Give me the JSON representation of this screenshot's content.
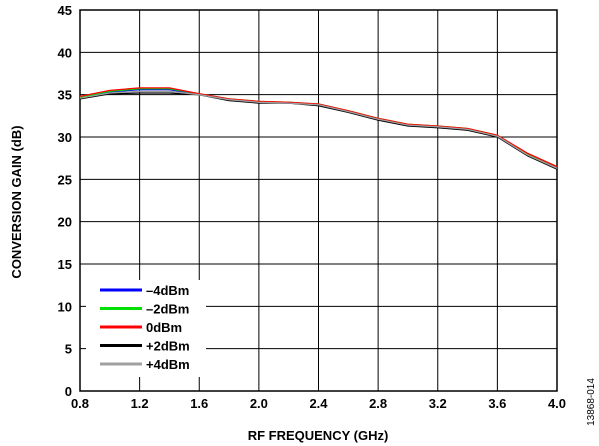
{
  "chart_data": {
    "type": "line",
    "xlabel": "RF FREQUENCY (GHz)",
    "ylabel": "CONVERSION GAIN (dB)",
    "xlim": [
      0.8,
      4.0
    ],
    "ylim": [
      0,
      45
    ],
    "xticks": [
      "0.8",
      "1.2",
      "1.6",
      "2.0",
      "2.4",
      "2.8",
      "3.2",
      "3.6",
      "4.0"
    ],
    "yticks": [
      "0",
      "5",
      "10",
      "15",
      "20",
      "25",
      "30",
      "35",
      "40",
      "45"
    ],
    "grid": true,
    "legend_position": "bottom-left",
    "x": [
      0.8,
      1.0,
      1.2,
      1.4,
      1.6,
      1.8,
      2.0,
      2.2,
      2.4,
      2.6,
      2.8,
      3.0,
      3.2,
      3.4,
      3.6,
      3.8,
      4.0
    ],
    "series": [
      {
        "name": "–4dBm",
        "color": "#0000ff",
        "values": [
          34.6,
          35.3,
          35.6,
          35.6,
          35.0,
          34.4,
          34.1,
          34.0,
          33.8,
          33.0,
          32.1,
          31.4,
          31.2,
          30.9,
          30.1,
          27.9,
          26.3
        ]
      },
      {
        "name": "–2dBm",
        "color": "#00e000",
        "values": [
          34.7,
          35.4,
          35.7,
          35.7,
          35.1,
          34.5,
          34.2,
          34.1,
          33.9,
          33.1,
          32.2,
          31.5,
          31.3,
          31.0,
          30.2,
          28.0,
          26.5
        ]
      },
      {
        "name": "0dBm",
        "color": "#ff0000",
        "values": [
          34.8,
          35.5,
          35.8,
          35.8,
          35.1,
          34.5,
          34.2,
          34.1,
          33.9,
          33.1,
          32.2,
          31.5,
          31.3,
          31.0,
          30.2,
          28.1,
          26.5
        ]
      },
      {
        "name": "+2dBm",
        "color": "#000000",
        "values": [
          34.5,
          35.1,
          35.2,
          35.2,
          35.0,
          34.3,
          34.0,
          34.0,
          33.7,
          32.9,
          32.0,
          31.3,
          31.1,
          30.8,
          30.0,
          27.8,
          26.2
        ]
      },
      {
        "name": "+4dBm",
        "color": "#a0a0a0",
        "values": [
          34.6,
          35.2,
          35.4,
          35.4,
          35.0,
          34.4,
          34.1,
          34.0,
          33.8,
          33.0,
          32.1,
          31.4,
          31.2,
          30.9,
          30.1,
          27.9,
          26.3
        ]
      }
    ],
    "figure_id": "13868-014"
  }
}
